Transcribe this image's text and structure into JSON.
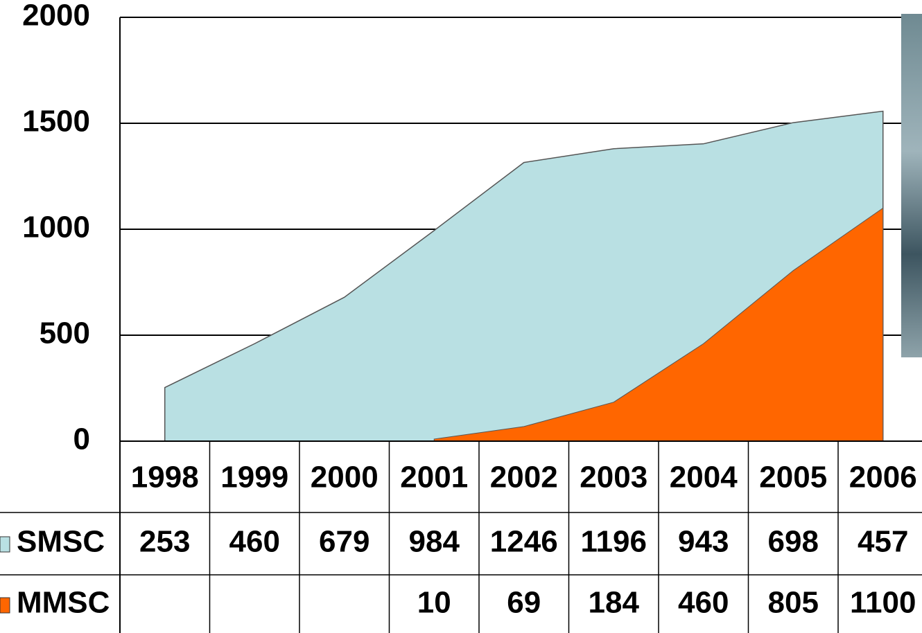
{
  "chart_data": {
    "type": "stacked-area",
    "categories": [
      "1998",
      "1999",
      "2000",
      "2001",
      "2002",
      "2003",
      "2004",
      "2005",
      "2006"
    ],
    "series": [
      {
        "name": "SMSC",
        "color": "#b9e0e3",
        "values": [
          253,
          460,
          679,
          984,
          1246,
          1196,
          943,
          698,
          457
        ]
      },
      {
        "name": "MMSC",
        "color": "#ff6600",
        "values": [
          null,
          null,
          null,
          10,
          69,
          184,
          460,
          805,
          1100
        ]
      }
    ],
    "ylim": [
      0,
      2000
    ],
    "yticks": [
      0,
      500,
      1000,
      1500,
      2000
    ],
    "grid": true
  }
}
